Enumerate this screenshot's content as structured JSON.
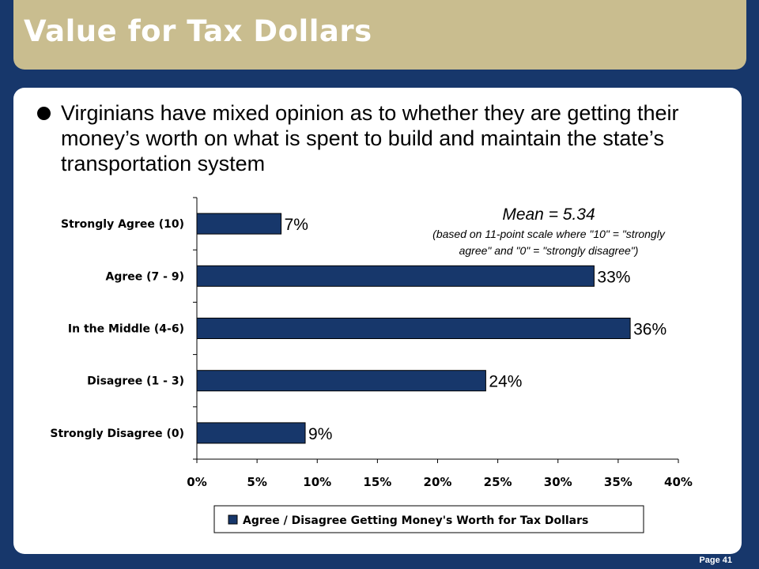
{
  "slide": {
    "title": "Value for Tax Dollars",
    "bullet": "Virginians have mixed opinion as to whether they are getting their money’s worth on what is spent to build and maintain the state’s transportation system",
    "page_label": "Page 41"
  },
  "chart_data": {
    "type": "bar",
    "orientation": "horizontal",
    "categories": [
      "Strongly Agree (10)",
      "Agree (7 - 9)",
      "In the Middle (4-6)",
      "Disagree (1 - 3)",
      "Strongly Disagree (0)"
    ],
    "series": [
      {
        "name": "Agree / Disagree Getting Money's Worth for Tax Dollars",
        "values": [
          7,
          33,
          36,
          24,
          9
        ],
        "color": "#17376b"
      }
    ],
    "value_labels": [
      "7%",
      "33%",
      "36%",
      "24%",
      "9%"
    ],
    "xlim": [
      0,
      40
    ],
    "xticks": [
      0,
      5,
      10,
      15,
      20,
      25,
      30,
      35,
      40
    ],
    "xtick_labels": [
      "0%",
      "5%",
      "10%",
      "15%",
      "20%",
      "25%",
      "30%",
      "35%",
      "40%"
    ],
    "grid": false,
    "legend_position": "bottom",
    "annotation": {
      "mean": "Mean = 5.34",
      "note_line1": "(based on 11-point scale where \"10\" = \"strongly",
      "note_line2": "agree\" and \"0\" = \"strongly disagree\")"
    }
  }
}
